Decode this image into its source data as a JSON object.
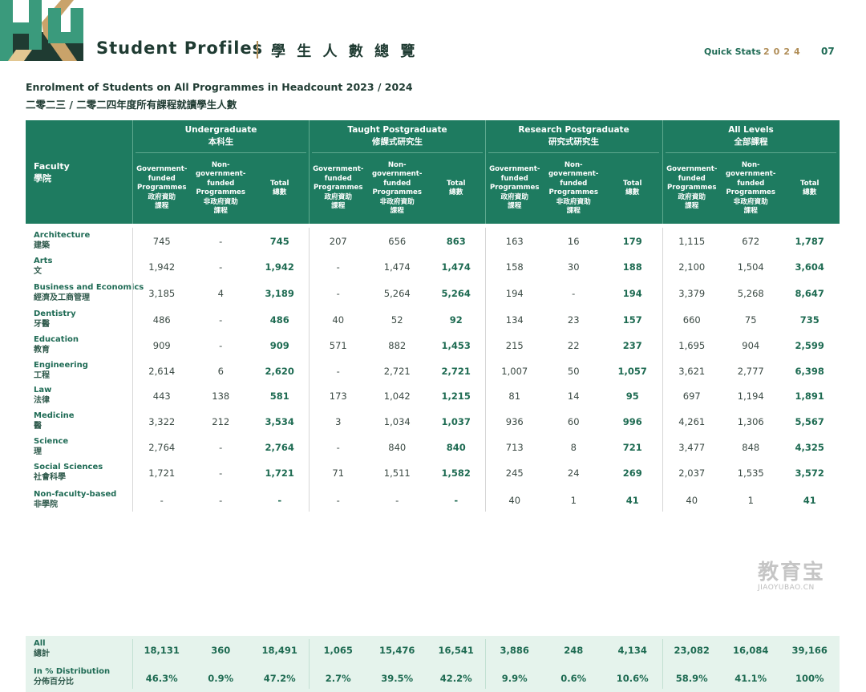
{
  "header": {
    "logo_text": "HKU",
    "title": "Student Profiles",
    "title_zh": "學 生 人 數 總 覽",
    "quick_stats_label": "Quick Stats",
    "year": "2024",
    "page_number": "07"
  },
  "table_title_en": "Enrolment of Students on All Programmes in Headcount 2023 / 2024",
  "table_title_zh": "二零二三 / 二零二四年度所有課程就讀學生人數",
  "table": {
    "faculty_header": "Faculty",
    "faculty_header_zh": "學院",
    "groups": [
      {
        "en": "Undergraduate",
        "zh": "本科生"
      },
      {
        "en": "Taught Postgraduate",
        "zh": "修課式研究生"
      },
      {
        "en": "Research Postgraduate",
        "zh": "研究式研究生"
      },
      {
        "en": "All Levels",
        "zh": "全部課程"
      }
    ],
    "subheaders": [
      "Government-\nfunded\nProgrammes\n政府資助\n課程",
      "Non-\ngovernment-\nfunded\nProgrammes\n非政府資助\n課程",
      "Total\n總數"
    ],
    "rows": [
      {
        "en": "Architecture",
        "zh": "建築",
        "values": [
          "745",
          "-",
          "745",
          "207",
          "656",
          "863",
          "163",
          "16",
          "179",
          "1,115",
          "672",
          "1,787"
        ]
      },
      {
        "en": "Arts",
        "zh": "文",
        "values": [
          "1,942",
          "-",
          "1,942",
          "-",
          "1,474",
          "1,474",
          "158",
          "30",
          "188",
          "2,100",
          "1,504",
          "3,604"
        ]
      },
      {
        "en": "Business and Economics",
        "zh": "經濟及工商管理",
        "values": [
          "3,185",
          "4",
          "3,189",
          "-",
          "5,264",
          "5,264",
          "194",
          "-",
          "194",
          "3,379",
          "5,268",
          "8,647"
        ]
      },
      {
        "en": "Dentistry",
        "zh": "牙醫",
        "values": [
          "486",
          "-",
          "486",
          "40",
          "52",
          "92",
          "134",
          "23",
          "157",
          "660",
          "75",
          "735"
        ]
      },
      {
        "en": "Education",
        "zh": "教育",
        "values": [
          "909",
          "-",
          "909",
          "571",
          "882",
          "1,453",
          "215",
          "22",
          "237",
          "1,695",
          "904",
          "2,599"
        ]
      },
      {
        "en": "Engineering",
        "zh": "工程",
        "values": [
          "2,614",
          "6",
          "2,620",
          "-",
          "2,721",
          "2,721",
          "1,007",
          "50",
          "1,057",
          "3,621",
          "2,777",
          "6,398"
        ]
      },
      {
        "en": "Law",
        "zh": "法律",
        "values": [
          "443",
          "138",
          "581",
          "173",
          "1,042",
          "1,215",
          "81",
          "14",
          "95",
          "697",
          "1,194",
          "1,891"
        ]
      },
      {
        "en": "Medicine",
        "zh": "醫",
        "values": [
          "3,322",
          "212",
          "3,534",
          "3",
          "1,034",
          "1,037",
          "936",
          "60",
          "996",
          "4,261",
          "1,306",
          "5,567"
        ]
      },
      {
        "en": "Science",
        "zh": "理",
        "values": [
          "2,764",
          "-",
          "2,764",
          "-",
          "840",
          "840",
          "713",
          "8",
          "721",
          "3,477",
          "848",
          "4,325"
        ]
      },
      {
        "en": "Social Sciences",
        "zh": "社會科學",
        "values": [
          "1,721",
          "-",
          "1,721",
          "71",
          "1,511",
          "1,582",
          "245",
          "24",
          "269",
          "2,037",
          "1,535",
          "3,572"
        ]
      },
      {
        "en": "Non-faculty-based",
        "zh": "非學院",
        "values": [
          "-",
          "-",
          "-",
          "-",
          "-",
          "-",
          "40",
          "1",
          "41",
          "40",
          "1",
          "41"
        ]
      }
    ],
    "footer": [
      {
        "en": "All",
        "zh": "總計",
        "values": [
          "18,131",
          "360",
          "18,491",
          "1,065",
          "15,476",
          "16,541",
          "3,886",
          "248",
          "4,134",
          "23,082",
          "16,084",
          "39,166"
        ]
      },
      {
        "en": "In % Distribution",
        "zh": "分佈百分比",
        "values": [
          "46.3%",
          "0.9%",
          "47.2%",
          "2.7%",
          "39.5%",
          "42.2%",
          "9.9%",
          "0.6%",
          "10.6%",
          "58.9%",
          "41.1%",
          "100%"
        ]
      }
    ]
  },
  "watermark": {
    "cn": "教育宝",
    "en": "JIAOYUBAO.CN"
  },
  "colors": {
    "primary_green": "#1e7b60",
    "accent_gold": "#b08d57",
    "footer_bg": "#e5f3ec"
  }
}
